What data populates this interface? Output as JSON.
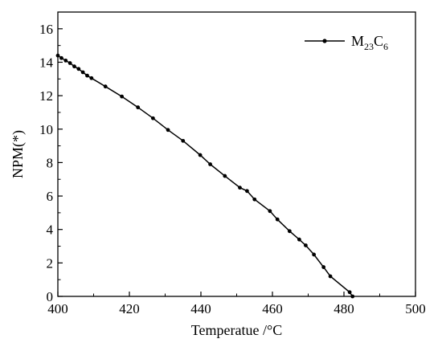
{
  "chart_data": {
    "type": "line",
    "title": "",
    "xlabel": "Temperatue /°C",
    "ylabel": "NPM(*)",
    "xlim": [
      400,
      500
    ],
    "ylim": [
      0,
      17
    ],
    "xticks": [
      400,
      420,
      440,
      460,
      480,
      500
    ],
    "yticks": [
      0,
      2,
      4,
      6,
      8,
      10,
      12,
      14,
      16
    ],
    "grid": false,
    "legend_position": "top-right",
    "series": [
      {
        "name": "M23C6",
        "name_base": "M",
        "name_sub1": "23",
        "name_mid": "C",
        "name_sub2": "6",
        "color": "#000000",
        "marker": "circle",
        "x": [
          400.0,
          401.0,
          402.2,
          403.4,
          404.6,
          405.8,
          407.0,
          408.2,
          409.4,
          413.3,
          417.9,
          422.4,
          426.6,
          430.8,
          435.0,
          439.8,
          442.6,
          446.7,
          450.9,
          452.9,
          455.0,
          459.3,
          461.4,
          464.8,
          467.5,
          469.3,
          471.6,
          474.3,
          476.2,
          481.6,
          482.4
        ],
        "y": [
          14.4,
          14.25,
          14.1,
          13.95,
          13.75,
          13.6,
          13.4,
          13.2,
          13.05,
          12.55,
          11.95,
          11.3,
          10.65,
          9.95,
          9.3,
          8.45,
          7.9,
          7.2,
          6.5,
          6.3,
          5.8,
          5.1,
          4.6,
          3.9,
          3.4,
          3.05,
          2.5,
          1.75,
          1.2,
          0.25,
          0.0
        ]
      }
    ]
  }
}
